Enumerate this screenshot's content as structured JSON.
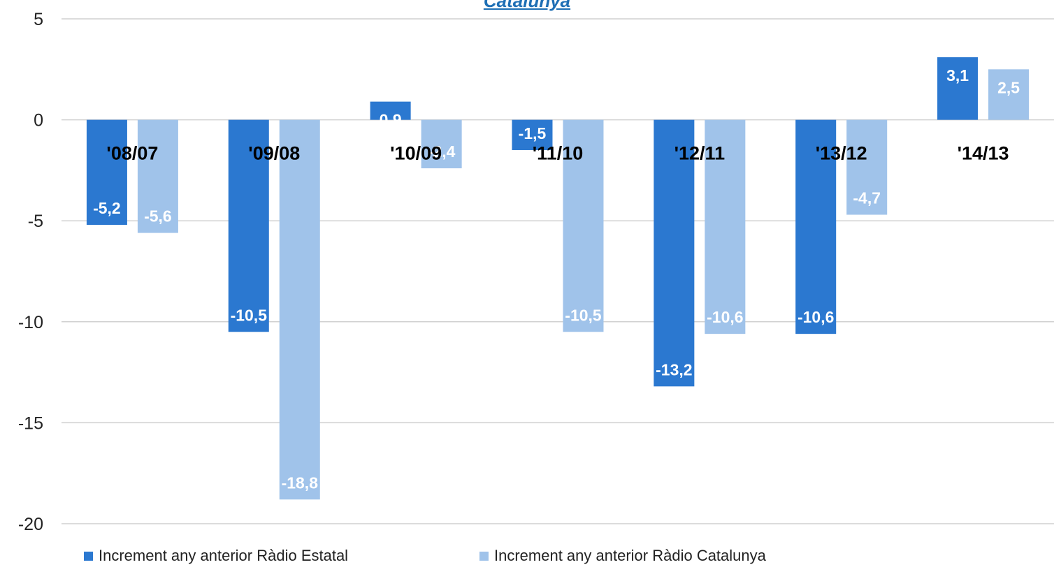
{
  "chart_data": {
    "type": "bar",
    "title": "Catalunya",
    "categories": [
      "'08/07",
      "'09/08",
      "'10/09",
      "'11/10",
      "'12/11",
      "'13/12",
      "'14/13"
    ],
    "series": [
      {
        "name": "Increment any anterior Ràdio Estatal",
        "color": "#2b78d0",
        "values": [
          -5.2,
          -10.5,
          0.9,
          -1.5,
          -13.2,
          -10.6,
          3.1
        ],
        "labels": [
          "-5,2",
          "-10,5",
          "0,9",
          "-1,5",
          "-13,2",
          "-10,6",
          "3,1"
        ]
      },
      {
        "name": "Increment any anterior Ràdio Catalunya",
        "color": "#a0c3ea",
        "values": [
          -5.6,
          -18.8,
          -2.4,
          -10.5,
          -10.6,
          -4.7,
          2.5
        ],
        "labels": [
          "-5,6",
          "-18,8",
          "-2,4",
          "-10,5",
          "-10,6",
          "-4,7",
          "2,5"
        ]
      }
    ],
    "ylim": [
      -20,
      5
    ],
    "yticks": [
      5,
      0,
      -5,
      -10,
      -15,
      -20
    ],
    "ytick_labels": [
      "5",
      "0",
      "-5",
      "-10",
      "-15",
      "-20"
    ],
    "grid": true,
    "legend": "bottom",
    "colors": {
      "gridline": "#d0d0d0",
      "label_text": "#ffffff",
      "category_text": "#000000"
    }
  }
}
